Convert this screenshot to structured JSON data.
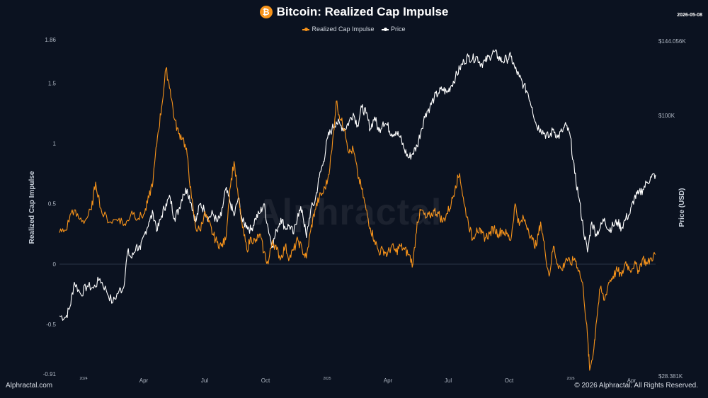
{
  "header": {
    "title": "Bitcoin: Realized Cap Impulse",
    "coin_symbol": "₿",
    "date_stamp": "2026-05-08"
  },
  "legend": {
    "items": [
      {
        "label": "Realized Cap Impulse",
        "color": "#f7931a"
      },
      {
        "label": "Price",
        "color": "#ffffff"
      }
    ]
  },
  "footer": {
    "left": "Alphractal.com",
    "right": "© 2026 Alphractal. All Rights Reserved."
  },
  "watermark": "Alphractal",
  "chart_data": {
    "type": "line",
    "title": "Bitcoin: Realized Cap Impulse",
    "y_left": {
      "label": "Realized Cap Impulse",
      "range": [
        -0.91,
        1.86
      ],
      "ticks": [
        "1.86",
        "1.5",
        "1",
        "0.5",
        "0",
        "-0.5",
        "-0.91"
      ]
    },
    "y_right": {
      "label": "Price (USD)",
      "ticks": [
        "$144.056K",
        "$100K",
        "$28.381K"
      ]
    },
    "x_ticks": [
      {
        "label": "2024",
        "small": true
      },
      {
        "label": "Apr"
      },
      {
        "label": "Jul"
      },
      {
        "label": "Oct"
      },
      {
        "label": "2025",
        "small": true
      },
      {
        "label": "Apr"
      },
      {
        "label": "Jul"
      },
      {
        "label": "Oct"
      },
      {
        "label": "2026",
        "small": true
      },
      {
        "label": "Apr"
      }
    ],
    "grid": false,
    "zero_line": true,
    "series": [
      {
        "name": "Realized Cap Impulse",
        "color": "#f7931a",
        "points": [
          [
            0,
            0.26
          ],
          [
            1.5,
            0.28
          ],
          [
            3,
            0.45
          ],
          [
            4.5,
            0.38
          ],
          [
            6,
            0.36
          ],
          [
            7.5,
            0.45
          ],
          [
            8.5,
            0.68
          ],
          [
            10,
            0.42
          ],
          [
            12,
            0.35
          ],
          [
            14,
            0.38
          ],
          [
            15.5,
            0.32
          ],
          [
            17,
            0.44
          ],
          [
            18.5,
            0.38
          ],
          [
            20,
            0.42
          ],
          [
            21,
            0.55
          ],
          [
            22,
            0.7
          ],
          [
            23,
            1.05
          ],
          [
            24,
            1.3
          ],
          [
            25,
            1.62
          ],
          [
            26,
            1.45
          ],
          [
            27,
            1.2
          ],
          [
            28,
            1.08
          ],
          [
            29,
            1.05
          ],
          [
            30,
            0.9
          ],
          [
            31,
            0.55
          ],
          [
            32,
            0.3
          ],
          [
            33,
            0.28
          ],
          [
            34,
            0.42
          ],
          [
            35,
            0.35
          ],
          [
            36,
            0.25
          ],
          [
            37,
            0.18
          ],
          [
            38,
            0.15
          ],
          [
            39,
            0.2
          ],
          [
            40,
            0.62
          ],
          [
            41,
            0.85
          ],
          [
            42,
            0.55
          ],
          [
            43,
            0.3
          ],
          [
            44,
            0.12
          ],
          [
            45,
            0.22
          ],
          [
            46,
            0.18
          ],
          [
            47,
            0.25
          ],
          [
            48,
            0.1
          ],
          [
            49,
            0.0
          ],
          [
            50,
            0.2
          ],
          [
            51,
            0.12
          ],
          [
            52,
            0.05
          ],
          [
            53,
            0.15
          ],
          [
            54,
            0.05
          ],
          [
            55,
            0.12
          ],
          [
            56,
            0.2
          ],
          [
            57,
            0.12
          ],
          [
            58,
            0.05
          ],
          [
            59,
            0.28
          ],
          [
            60,
            0.45
          ],
          [
            61,
            0.55
          ],
          [
            62,
            0.6
          ],
          [
            63,
            0.7
          ],
          [
            64,
            0.95
          ],
          [
            65,
            1.35
          ],
          [
            66,
            1.2
          ],
          [
            67,
            1.12
          ],
          [
            68,
            0.92
          ],
          [
            69,
            0.95
          ],
          [
            70,
            0.75
          ],
          [
            71,
            0.62
          ],
          [
            72,
            0.45
          ],
          [
            73,
            0.3
          ],
          [
            74,
            0.2
          ],
          [
            75,
            0.1
          ],
          [
            76,
            0.12
          ],
          [
            77,
            0.08
          ],
          [
            78,
            0.15
          ],
          [
            79,
            0.1
          ],
          [
            80,
            0.15
          ],
          [
            81,
            0.12
          ],
          [
            82,
            0.08
          ],
          [
            83,
            0.0
          ],
          [
            84,
            0.35
          ],
          [
            85,
            0.45
          ],
          [
            86,
            0.38
          ],
          [
            87,
            0.4
          ],
          [
            88,
            0.44
          ],
          [
            89,
            0.42
          ],
          [
            90,
            0.35
          ],
          [
            91,
            0.42
          ],
          [
            92,
            0.5
          ],
          [
            93,
            0.65
          ],
          [
            94,
            0.75
          ],
          [
            95,
            0.5
          ],
          [
            96,
            0.35
          ],
          [
            97,
            0.2
          ],
          [
            98,
            0.3
          ],
          [
            99,
            0.25
          ],
          [
            100,
            0.22
          ],
          [
            101,
            0.25
          ],
          [
            102,
            0.3
          ],
          [
            103,
            0.25
          ],
          [
            104,
            0.28
          ],
          [
            105,
            0.25
          ],
          [
            106,
            0.2
          ],
          [
            107,
            0.5
          ],
          [
            108,
            0.32
          ],
          [
            109,
            0.38
          ],
          [
            110,
            0.3
          ],
          [
            111,
            0.2
          ],
          [
            112,
            0.15
          ],
          [
            113,
            0.35
          ],
          [
            114,
            0.12
          ],
          [
            115,
            -0.1
          ],
          [
            116,
            0.15
          ],
          [
            117,
            0.0
          ],
          [
            118,
            -0.05
          ],
          [
            119,
            0.05
          ],
          [
            120,
            0.0
          ],
          [
            121,
            0.05
          ],
          [
            122,
            -0.05
          ],
          [
            123,
            -0.2
          ],
          [
            124,
            -0.6
          ],
          [
            124.5,
            -0.88
          ],
          [
            125.5,
            -0.7
          ],
          [
            126,
            -0.5
          ],
          [
            127,
            -0.2
          ],
          [
            128,
            -0.3
          ],
          [
            129,
            -0.15
          ],
          [
            130,
            -0.1
          ],
          [
            131,
            -0.05
          ],
          [
            132,
            -0.1
          ],
          [
            133,
            0.02
          ],
          [
            134,
            -0.05
          ],
          [
            135,
            0.0
          ],
          [
            136,
            -0.05
          ],
          [
            137,
            0.05
          ],
          [
            138,
            0.0
          ],
          [
            139,
            0.05
          ],
          [
            140,
            0.08
          ]
        ]
      },
      {
        "name": "Price",
        "color": "#ffffff",
        "points": [
          [
            0,
            -0.43
          ],
          [
            1.5,
            -0.44
          ],
          [
            2.5,
            -0.35
          ],
          [
            3.5,
            -0.15
          ],
          [
            5,
            -0.25
          ],
          [
            6.5,
            -0.18
          ],
          [
            8,
            -0.2
          ],
          [
            9.5,
            -0.12
          ],
          [
            11,
            -0.22
          ],
          [
            12.5,
            -0.32
          ],
          [
            14,
            -0.22
          ],
          [
            15,
            -0.2
          ],
          [
            16,
            0.1
          ],
          [
            17,
            0.05
          ],
          [
            18,
            0.15
          ],
          [
            19,
            0.12
          ],
          [
            20,
            0.25
          ],
          [
            21,
            0.35
          ],
          [
            22,
            0.42
          ],
          [
            23,
            0.28
          ],
          [
            24,
            0.4
          ],
          [
            25,
            0.5
          ],
          [
            26,
            0.55
          ],
          [
            27,
            0.38
          ],
          [
            28,
            0.45
          ],
          [
            29,
            0.58
          ],
          [
            30,
            0.62
          ],
          [
            31,
            0.5
          ],
          [
            32,
            0.35
          ],
          [
            33,
            0.5
          ],
          [
            34,
            0.45
          ],
          [
            35,
            0.38
          ],
          [
            36,
            0.42
          ],
          [
            37,
            0.35
          ],
          [
            38,
            0.4
          ],
          [
            39,
            0.62
          ],
          [
            40,
            0.52
          ],
          [
            41,
            0.4
          ],
          [
            42,
            0.55
          ],
          [
            43,
            0.35
          ],
          [
            44,
            0.32
          ],
          [
            45,
            0.28
          ],
          [
            46,
            0.38
          ],
          [
            47,
            0.42
          ],
          [
            48,
            0.5
          ],
          [
            49,
            0.3
          ],
          [
            50,
            0.15
          ],
          [
            51,
            0.28
          ],
          [
            52,
            0.38
          ],
          [
            53,
            0.3
          ],
          [
            54,
            0.32
          ],
          [
            55,
            0.25
          ],
          [
            56,
            0.42
          ],
          [
            57,
            0.45
          ],
          [
            58,
            0.22
          ],
          [
            59,
            0.45
          ],
          [
            60,
            0.52
          ],
          [
            61,
            0.72
          ],
          [
            62,
            0.85
          ],
          [
            63,
            1.05
          ],
          [
            64,
            1.12
          ],
          [
            65,
            1.18
          ],
          [
            66,
            1.15
          ],
          [
            67,
            1.12
          ],
          [
            68,
            1.18
          ],
          [
            69,
            1.25
          ],
          [
            70,
            1.15
          ],
          [
            71,
            1.3
          ],
          [
            72,
            1.25
          ],
          [
            73,
            1.12
          ],
          [
            74,
            1.22
          ],
          [
            75,
            1.1
          ],
          [
            76,
            1.18
          ],
          [
            77,
            1.15
          ],
          [
            78,
            1.08
          ],
          [
            79,
            1.1
          ],
          [
            80,
            1.05
          ],
          [
            81,
            0.95
          ],
          [
            82,
            0.88
          ],
          [
            83,
            0.92
          ],
          [
            84,
            0.98
          ],
          [
            85,
            1.12
          ],
          [
            86,
            1.25
          ],
          [
            87,
            1.3
          ],
          [
            88,
            1.38
          ],
          [
            89,
            1.42
          ],
          [
            90,
            1.45
          ],
          [
            91,
            1.42
          ],
          [
            92,
            1.48
          ],
          [
            93,
            1.55
          ],
          [
            94,
            1.62
          ],
          [
            95,
            1.68
          ],
          [
            96,
            1.72
          ],
          [
            97,
            1.7
          ],
          [
            98,
            1.72
          ],
          [
            99,
            1.66
          ],
          [
            100,
            1.68
          ],
          [
            101,
            1.72
          ],
          [
            102,
            1.76
          ],
          [
            103,
            1.72
          ],
          [
            104,
            1.68
          ],
          [
            105,
            1.7
          ],
          [
            106,
            1.72
          ],
          [
            107,
            1.62
          ],
          [
            108,
            1.55
          ],
          [
            109,
            1.48
          ],
          [
            110,
            1.42
          ],
          [
            111,
            1.3
          ],
          [
            112,
            1.15
          ],
          [
            113,
            1.12
          ],
          [
            114,
            1.08
          ],
          [
            115,
            1.05
          ],
          [
            116,
            1.12
          ],
          [
            117,
            1.05
          ],
          [
            118,
            1.1
          ],
          [
            119,
            1.15
          ],
          [
            120,
            1.05
          ],
          [
            121,
            0.75
          ],
          [
            122,
            0.55
          ],
          [
            123,
            0.3
          ],
          [
            124,
            0.1
          ],
          [
            125,
            0.35
          ],
          [
            126,
            0.25
          ],
          [
            127,
            0.3
          ],
          [
            128,
            0.38
          ],
          [
            129,
            0.28
          ],
          [
            130,
            0.32
          ],
          [
            131,
            0.35
          ],
          [
            132,
            0.3
          ],
          [
            133,
            0.38
          ],
          [
            134,
            0.42
          ],
          [
            135,
            0.55
          ],
          [
            136,
            0.58
          ],
          [
            137,
            0.62
          ],
          [
            138,
            0.68
          ],
          [
            139,
            0.72
          ],
          [
            140,
            0.74
          ]
        ]
      }
    ]
  }
}
